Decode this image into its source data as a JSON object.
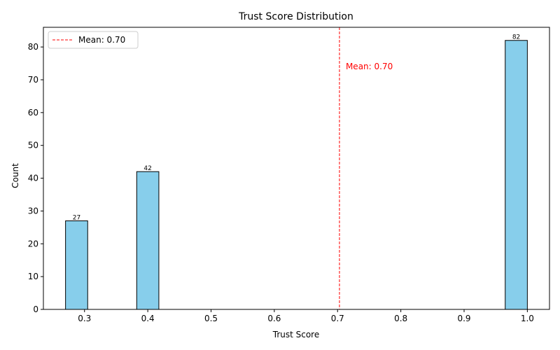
{
  "chart_data": {
    "type": "bar",
    "title": "Trust Score Distribution",
    "xlabel": "Trust Score",
    "ylabel": "Count",
    "xlim": [
      0.235,
      1.035
    ],
    "ylim": [
      0,
      86
    ],
    "xticks": [
      0.3,
      0.4,
      0.5,
      0.6,
      0.7,
      0.8,
      0.9,
      1.0
    ],
    "xtick_labels": [
      "0.3",
      "0.4",
      "0.5",
      "0.6",
      "0.7",
      "0.8",
      "0.9",
      "1.0"
    ],
    "yticks": [
      0,
      10,
      20,
      30,
      40,
      50,
      60,
      70,
      80
    ],
    "ytick_labels": [
      "0",
      "10",
      "20",
      "30",
      "40",
      "50",
      "60",
      "70",
      "80"
    ],
    "bin_width": 0.035,
    "bars": [
      {
        "x_start": 0.27,
        "x_end": 0.305,
        "value": 27,
        "label": "27"
      },
      {
        "x_start": 0.3825,
        "x_end": 0.4175,
        "value": 42,
        "label": "42"
      },
      {
        "x_start": 0.965,
        "x_end": 1.0,
        "value": 82,
        "label": "82"
      }
    ],
    "bar_color": "#87ceeb",
    "bar_edge_color": "#000000",
    "mean": {
      "value": 0.703,
      "label": "Mean: 0.70",
      "color": "#ff0000",
      "annotation_y": 74
    },
    "legend": {
      "placement": "top-left",
      "entries": [
        {
          "label": "Mean: 0.70",
          "style": "dashed-line",
          "color": "#ff0000"
        }
      ]
    },
    "grid": false
  }
}
